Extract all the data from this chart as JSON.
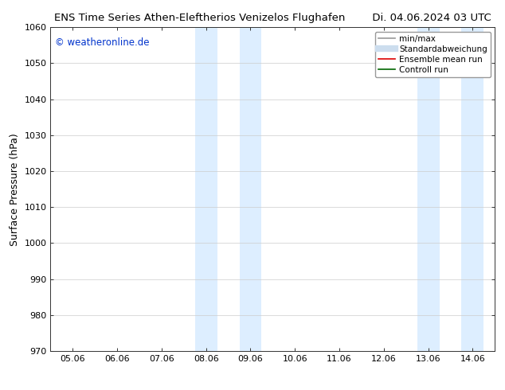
{
  "title_left": "ENS Time Series Athen-Eleftherios Venizelos Flughafen",
  "title_right": "Di. 04.06.2024 03 UTC",
  "ylabel": "Surface Pressure (hPa)",
  "ylim": [
    970,
    1060
  ],
  "yticks": [
    970,
    980,
    990,
    1000,
    1010,
    1020,
    1030,
    1040,
    1050,
    1060
  ],
  "xtick_labels": [
    "05.06",
    "06.06",
    "07.06",
    "08.06",
    "09.06",
    "10.06",
    "11.06",
    "12.06",
    "13.06",
    "14.06"
  ],
  "xtick_positions": [
    0,
    1,
    2,
    3,
    4,
    5,
    6,
    7,
    8,
    9
  ],
  "xlim": [
    -0.5,
    9.5
  ],
  "shaded_regions": [
    {
      "x_start": 2.75,
      "x_end": 3.25,
      "color": "#ddeeff"
    },
    {
      "x_start": 3.75,
      "x_end": 4.25,
      "color": "#ddeeff"
    },
    {
      "x_start": 7.75,
      "x_end": 8.25,
      "color": "#ddeeff"
    },
    {
      "x_start": 8.75,
      "x_end": 9.25,
      "color": "#ddeeff"
    }
  ],
  "watermark_text": "© weatheronline.de",
  "watermark_color": "#0033cc",
  "legend_entries": [
    {
      "label": "min/max",
      "color": "#999999",
      "lw": 1.2
    },
    {
      "label": "Standardabweichung",
      "color": "#ccddee",
      "lw": 6
    },
    {
      "label": "Ensemble mean run",
      "color": "#dd0000",
      "lw": 1.2
    },
    {
      "label": "Controll run",
      "color": "#006600",
      "lw": 1.2
    }
  ],
  "title_fontsize": 9.5,
  "ylabel_fontsize": 9,
  "tick_fontsize": 8,
  "legend_fontsize": 7.5,
  "watermark_fontsize": 8.5,
  "background_color": "#ffffff",
  "grid_color": "#cccccc",
  "spine_color": "#333333"
}
